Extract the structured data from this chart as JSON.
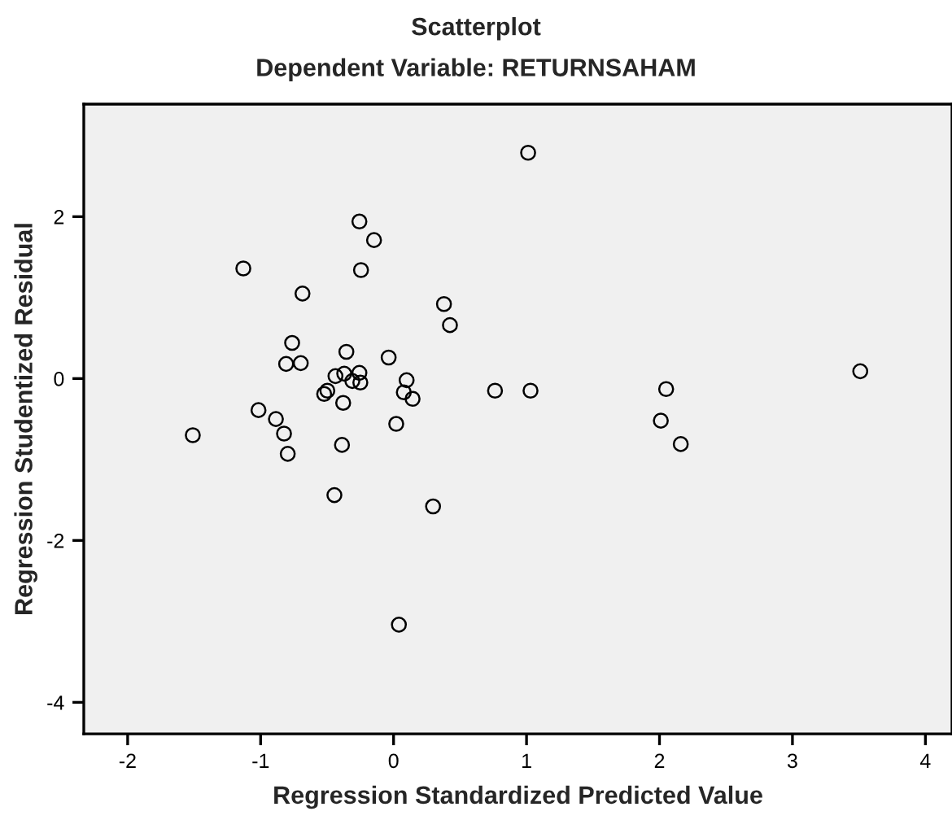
{
  "chart_data": {
    "type": "scatter",
    "title": "Scatterplot",
    "subtitle": "Dependent Variable: RETURNSAHAM",
    "xlabel": "Regression Standardized Predicted Value",
    "ylabel": "Regression Studentized Residual",
    "x": [
      -1.13,
      -0.685,
      -0.257,
      -0.147,
      -0.245,
      0.379,
      0.424,
      -0.763,
      -0.808,
      -0.698,
      -0.355,
      -0.037,
      -0.437,
      -0.371,
      -0.257,
      -0.31,
      -0.25,
      0.098,
      0.077,
      0.143,
      0.763,
      -0.498,
      -0.522,
      -0.379,
      -1.016,
      -0.885,
      -1.51,
      -0.824,
      -0.796,
      -0.388,
      0.02,
      -0.445,
      0.297,
      0.04,
      1.012,
      1.03,
      2.05,
      2.01,
      2.16,
      3.51
    ],
    "values": [
      1.36,
      1.05,
      1.94,
      1.71,
      1.34,
      0.92,
      0.66,
      0.44,
      0.18,
      0.19,
      0.33,
      0.26,
      0.03,
      0.06,
      0.07,
      -0.03,
      -0.05,
      -0.02,
      -0.17,
      -0.25,
      -0.15,
      -0.15,
      -0.19,
      -0.3,
      -0.39,
      -0.5,
      -0.7,
      -0.68,
      -0.93,
      -0.82,
      -0.56,
      -1.44,
      -1.58,
      -3.04,
      2.79,
      -0.15,
      -0.13,
      -0.52,
      -0.81,
      0.09
    ],
    "color": "#000000",
    "marker": "circle",
    "xlim": [
      -2.33,
      4.2
    ],
    "ylim": [
      -4.39,
      3.39
    ],
    "xticks": [
      -2,
      -1,
      0,
      1,
      2,
      3,
      4
    ],
    "yticks": [
      -4,
      -2,
      0,
      2
    ],
    "grid": false,
    "legend": false
  }
}
